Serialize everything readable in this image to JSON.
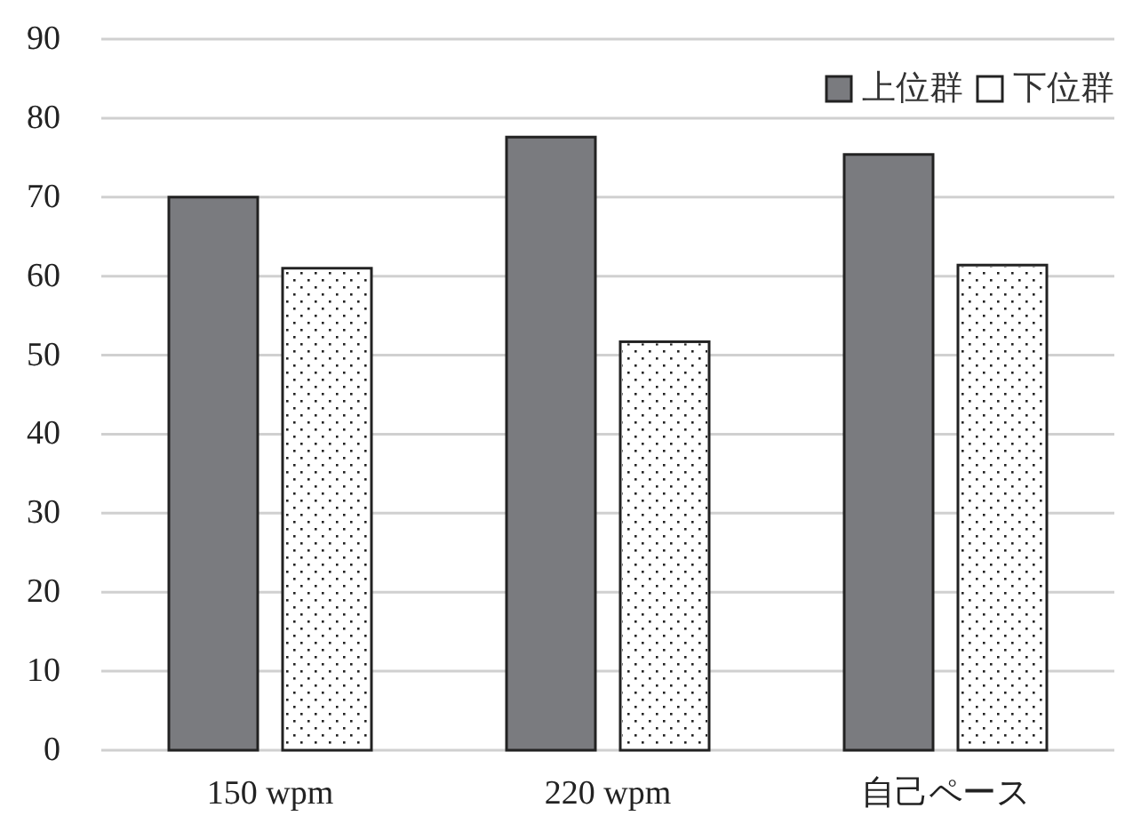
{
  "chart_data": {
    "type": "bar",
    "categories": [
      "150 wpm",
      "220 wpm",
      "自己ペース"
    ],
    "series": [
      {
        "name": "上位群",
        "color": "#7a7b7f",
        "values": [
          70,
          77.6,
          75.4
        ]
      },
      {
        "name": "下位群",
        "color": "#ffffff",
        "values": [
          61,
          51.7,
          61.4
        ]
      }
    ],
    "ylim": [
      0,
      90
    ],
    "yticks": [
      0,
      10,
      20,
      30,
      40,
      50,
      60,
      70,
      80,
      90
    ],
    "grid": "y",
    "legend": "top right"
  }
}
